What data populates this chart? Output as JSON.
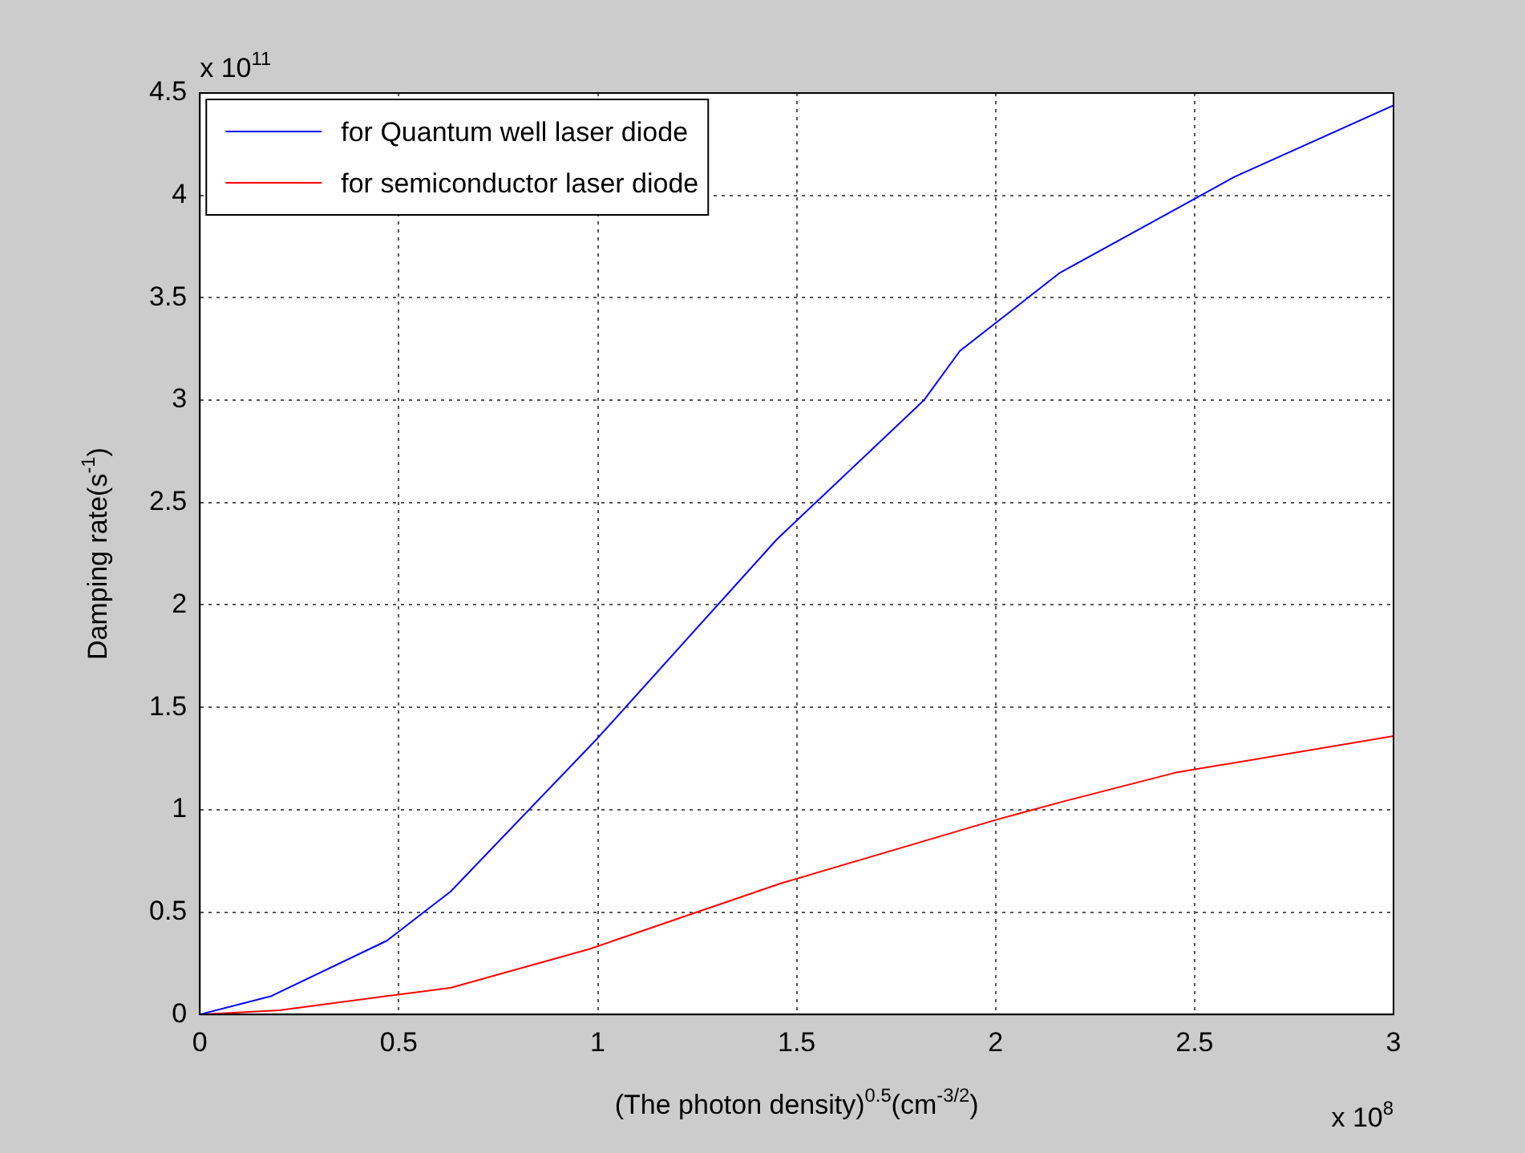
{
  "chart_data": {
    "type": "line",
    "xlabel": "(The photon density)$^{0.5}$(cm$^{-3/2}$)",
    "ylabel": "Damping rate(s$^{-1}$)",
    "annotations": [
      "x 10$^{11}$",
      "x 10$^{8}$"
    ],
    "series": [
      {
        "name": "for Quantum well laser diode",
        "color": "#0000ff",
        "x": [
          0,
          0.18,
          0.47,
          0.63,
          1.0,
          1.45,
          1.82,
          1.91,
          2.16,
          2.6,
          3.0
        ],
        "values": [
          0,
          0.09,
          0.36,
          0.6,
          1.35,
          2.32,
          3.0,
          3.24,
          3.62,
          4.09,
          4.44
        ]
      },
      {
        "name": "for semiconductor laser diode",
        "color": "#ff0000",
        "x": [
          0,
          0.2,
          0.47,
          0.63,
          0.98,
          1.46,
          2.0,
          2.17,
          2.45,
          3.0
        ],
        "values": [
          0,
          0.02,
          0.09,
          0.13,
          0.32,
          0.64,
          0.95,
          1.04,
          1.18,
          1.36
        ]
      }
    ],
    "xlim": [
      0,
      3
    ],
    "xticks": [
      0,
      0.5,
      1,
      1.5,
      2,
      2.5,
      3
    ],
    "ylim": [
      0,
      4.5
    ],
    "yticks": [
      0,
      0.5,
      1,
      1.5,
      2,
      2.5,
      3,
      3.5,
      4,
      4.5
    ],
    "grid": true,
    "legend": "top left",
    "marker": "none",
    "line_style": "solid"
  }
}
